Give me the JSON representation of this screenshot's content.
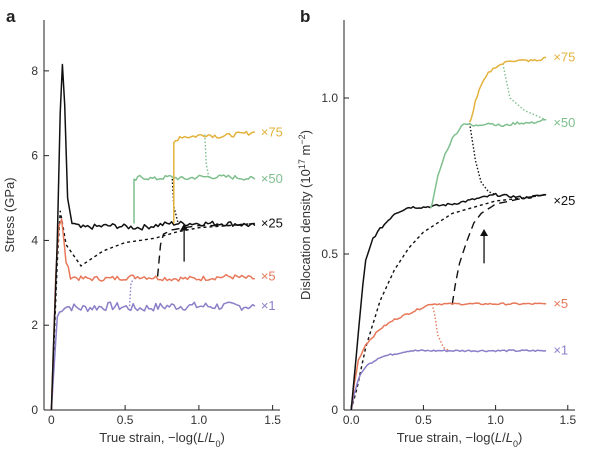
{
  "chart_data": [
    {
      "panel": "a",
      "type": "line",
      "title": "",
      "xlabel": "True strain, −log(L/L₀)",
      "xlabel_parts": [
        "True strain, −log(",
        "L",
        "/",
        "L",
        "0",
        ")"
      ],
      "ylabel": "Stress (GPa)",
      "xlim": [
        -0.05,
        1.55
      ],
      "ylim": [
        0,
        9.2
      ],
      "xticks": [
        0,
        0.5,
        1.0,
        1.5
      ],
      "xtick_labels": [
        "0",
        "0.5",
        "1.0",
        "1.5"
      ],
      "yticks": [
        0,
        2,
        4,
        6,
        8
      ],
      "ytick_labels": [
        "0",
        "2",
        "4",
        "6",
        "8"
      ],
      "grid": false,
      "series": [
        {
          "name": "×1",
          "color": "#8a7fc8",
          "dash": "solid",
          "noise": 0.1,
          "x": [
            0,
            0.04,
            0.07,
            0.09,
            0.2,
            0.4,
            0.6,
            0.8,
            1.0,
            1.2,
            1.38
          ],
          "y": [
            0,
            2.2,
            2.4,
            2.45,
            2.4,
            2.45,
            2.4,
            2.45,
            2.45,
            2.45,
            2.45
          ]
        },
        {
          "name": "×5",
          "color": "#e8785a",
          "dash": "solid",
          "noise": 0.06,
          "x": [
            0,
            0.03,
            0.05,
            0.07,
            0.1,
            0.13,
            0.2,
            0.4,
            0.6,
            0.8,
            1.0,
            1.2,
            1.38
          ],
          "y": [
            0,
            3.2,
            4.3,
            4.5,
            3.5,
            3.15,
            3.1,
            3.1,
            3.15,
            3.1,
            3.1,
            3.15,
            3.1
          ]
        },
        {
          "name": "×25",
          "color": "#111111",
          "dash": "solid",
          "noise": 0.06,
          "x": [
            0,
            0.04,
            0.06,
            0.075,
            0.09,
            0.11,
            0.14,
            0.2,
            0.4,
            0.6,
            0.8,
            1.0,
            1.2,
            1.38
          ],
          "y": [
            0,
            4.0,
            7.0,
            8.15,
            7.2,
            5.0,
            4.4,
            4.3,
            4.35,
            4.3,
            4.4,
            4.4,
            4.4,
            4.35
          ]
        },
        {
          "name": "×50",
          "color": "#7fbf8e",
          "dash": "solid",
          "noise": 0.05,
          "x": [
            0.56,
            0.56,
            0.6,
            0.7,
            0.8,
            0.9,
            1.0,
            1.2,
            1.38
          ],
          "y": [
            4.4,
            5.4,
            5.5,
            5.45,
            5.5,
            5.45,
            5.5,
            5.5,
            5.45
          ]
        },
        {
          "name": "×75",
          "color": "#e3b23c",
          "dash": "solid",
          "noise": 0.05,
          "x": [
            0.83,
            0.83,
            0.87,
            0.95,
            1.05,
            1.15,
            1.25,
            1.38
          ],
          "y": [
            4.4,
            6.3,
            6.45,
            6.45,
            6.5,
            6.45,
            6.5,
            6.55
          ]
        }
      ],
      "extra_lines": [
        {
          "color": "#111111",
          "dash": "3,3",
          "x": [
            0,
            0.04,
            0.06,
            0.1,
            0.2,
            0.35,
            0.5,
            0.7,
            0.85,
            1.0,
            1.2,
            1.38
          ],
          "y": [
            0,
            3.5,
            4.7,
            3.9,
            3.4,
            3.75,
            3.95,
            4.05,
            4.2,
            4.3,
            4.35,
            4.4
          ]
        },
        {
          "color": "#111111",
          "dash": "8,5",
          "x": [
            0.72,
            0.74,
            0.76,
            0.82,
            0.9,
            1.0,
            1.2,
            1.38
          ],
          "y": [
            3.15,
            3.9,
            4.15,
            4.25,
            4.3,
            4.35,
            4.35,
            4.4
          ]
        },
        {
          "color": "#8a7fc8",
          "dash": "1.5,2",
          "x": [
            0.53,
            0.54,
            0.56
          ],
          "y": [
            2.45,
            3.0,
            3.1
          ]
        },
        {
          "color": "#7fbf8e",
          "dash": "1.5,2",
          "x": [
            1.04,
            1.05,
            1.07
          ],
          "y": [
            6.5,
            5.8,
            5.45
          ]
        },
        {
          "color": "#111111",
          "dash": "1.5,2",
          "x": [
            0.82,
            0.83,
            0.86
          ],
          "y": [
            5.45,
            4.8,
            4.4
          ]
        }
      ],
      "arrow": {
        "x": 0.9,
        "y_tail": 3.5,
        "y_head": 4.4
      },
      "series_label_pos": [
        [
          1.42,
          2.45
        ],
        [
          1.42,
          3.15
        ],
        [
          1.42,
          4.4
        ],
        [
          1.42,
          5.45
        ],
        [
          1.42,
          6.55
        ]
      ]
    },
    {
      "panel": "b",
      "type": "line",
      "title": "",
      "xlabel": "True strain, −log(L/L₀)",
      "xlabel_parts": [
        "True strain, −log(",
        "L",
        "/",
        "L",
        "0",
        ")"
      ],
      "ylabel": "Dislocation density (10¹⁷ m⁻²)",
      "ylabel_parts": [
        "Dislocation density (10",
        "17",
        " m",
        "−2",
        ")"
      ],
      "xlim": [
        -0.05,
        1.55
      ],
      "ylim": [
        0,
        1.25
      ],
      "xticks": [
        0,
        0.5,
        1.0,
        1.5
      ],
      "xtick_labels": [
        "0.0",
        "0.5",
        "1.0",
        "1.5"
      ],
      "yticks": [
        0,
        0.5,
        1.0
      ],
      "ytick_labels": [
        "0",
        "0.5",
        "1.0"
      ],
      "grid": false,
      "series": [
        {
          "name": "×1",
          "color": "#8a7fc8",
          "dash": "solid",
          "noise": 0.003,
          "x": [
            0,
            0.02,
            0.05,
            0.1,
            0.2,
            0.3,
            0.4,
            0.5,
            0.6,
            0.8,
            1.0,
            1.2,
            1.35
          ],
          "y": [
            0,
            0.05,
            0.1,
            0.14,
            0.17,
            0.18,
            0.19,
            0.19,
            0.19,
            0.19,
            0.19,
            0.19,
            0.19
          ]
        },
        {
          "name": "×5",
          "color": "#e8785a",
          "dash": "solid",
          "noise": 0.003,
          "x": [
            0,
            0.02,
            0.05,
            0.1,
            0.2,
            0.3,
            0.4,
            0.5,
            0.55,
            0.7,
            0.9,
            1.1,
            1.35
          ],
          "y": [
            0,
            0.08,
            0.16,
            0.21,
            0.26,
            0.29,
            0.31,
            0.33,
            0.34,
            0.34,
            0.34,
            0.34,
            0.34
          ]
        },
        {
          "name": "×25",
          "color": "#111111",
          "dash": "solid",
          "noise": 0.004,
          "x": [
            0,
            0.02,
            0.05,
            0.08,
            0.1,
            0.15,
            0.2,
            0.3,
            0.4,
            0.5,
            0.7,
            0.9,
            1.0,
            1.2,
            1.35
          ],
          "y": [
            0,
            0.1,
            0.25,
            0.4,
            0.48,
            0.55,
            0.58,
            0.63,
            0.65,
            0.65,
            0.66,
            0.68,
            0.69,
            0.68,
            0.69
          ]
        },
        {
          "name": "×50",
          "color": "#7fbf8e",
          "dash": "solid",
          "noise": 0.004,
          "x": [
            0.55,
            0.56,
            0.6,
            0.65,
            0.7,
            0.78,
            0.85,
            0.95,
            1.05,
            1.15,
            1.25,
            1.35
          ],
          "y": [
            0.65,
            0.66,
            0.75,
            0.82,
            0.87,
            0.92,
            0.91,
            0.92,
            0.91,
            0.92,
            0.92,
            0.93
          ]
        },
        {
          "name": "×75",
          "color": "#e3b23c",
          "dash": "solid",
          "noise": 0.004,
          "x": [
            0.82,
            0.83,
            0.86,
            0.9,
            0.95,
            1.0,
            1.05,
            1.1,
            1.2,
            1.3,
            1.35
          ],
          "y": [
            0.92,
            0.93,
            0.99,
            1.04,
            1.08,
            1.1,
            1.11,
            1.12,
            1.12,
            1.12,
            1.13
          ]
        }
      ],
      "extra_lines": [
        {
          "color": "#111111",
          "dash": "3,3",
          "x": [
            0,
            0.04,
            0.1,
            0.2,
            0.3,
            0.4,
            0.5,
            0.6,
            0.7,
            0.85,
            1.0,
            1.2,
            1.35
          ],
          "y": [
            0,
            0.07,
            0.2,
            0.35,
            0.45,
            0.52,
            0.57,
            0.6,
            0.63,
            0.65,
            0.67,
            0.68,
            0.69
          ]
        },
        {
          "color": "#111111",
          "dash": "8,5",
          "x": [
            0.7,
            0.72,
            0.75,
            0.8,
            0.85,
            0.9,
            1.0,
            1.1,
            1.2,
            1.35
          ],
          "y": [
            0.34,
            0.4,
            0.47,
            0.54,
            0.6,
            0.63,
            0.66,
            0.67,
            0.68,
            0.69
          ]
        },
        {
          "color": "#e8785a",
          "dash": "1.5,2",
          "x": [
            0.56,
            0.58,
            0.6,
            0.64,
            0.68
          ],
          "y": [
            0.34,
            0.3,
            0.24,
            0.2,
            0.19
          ]
        },
        {
          "color": "#7fbf8e",
          "dash": "1.5,2",
          "x": [
            1.05,
            1.1,
            1.2,
            1.3,
            1.35
          ],
          "y": [
            1.11,
            1.0,
            0.96,
            0.94,
            0.93
          ]
        },
        {
          "color": "#111111",
          "dash": "1.5,2",
          "x": [
            0.82,
            0.86,
            0.9,
            0.95,
            1.0
          ],
          "y": [
            0.92,
            0.8,
            0.73,
            0.7,
            0.69
          ]
        }
      ],
      "arrow": {
        "x": 0.92,
        "y_tail": 0.47,
        "y_head": 0.58
      },
      "series_label_pos": [
        [
          1.4,
          0.19
        ],
        [
          1.4,
          0.34
        ],
        [
          1.4,
          0.67
        ],
        [
          1.4,
          0.92
        ],
        [
          1.4,
          1.13
        ]
      ]
    }
  ]
}
